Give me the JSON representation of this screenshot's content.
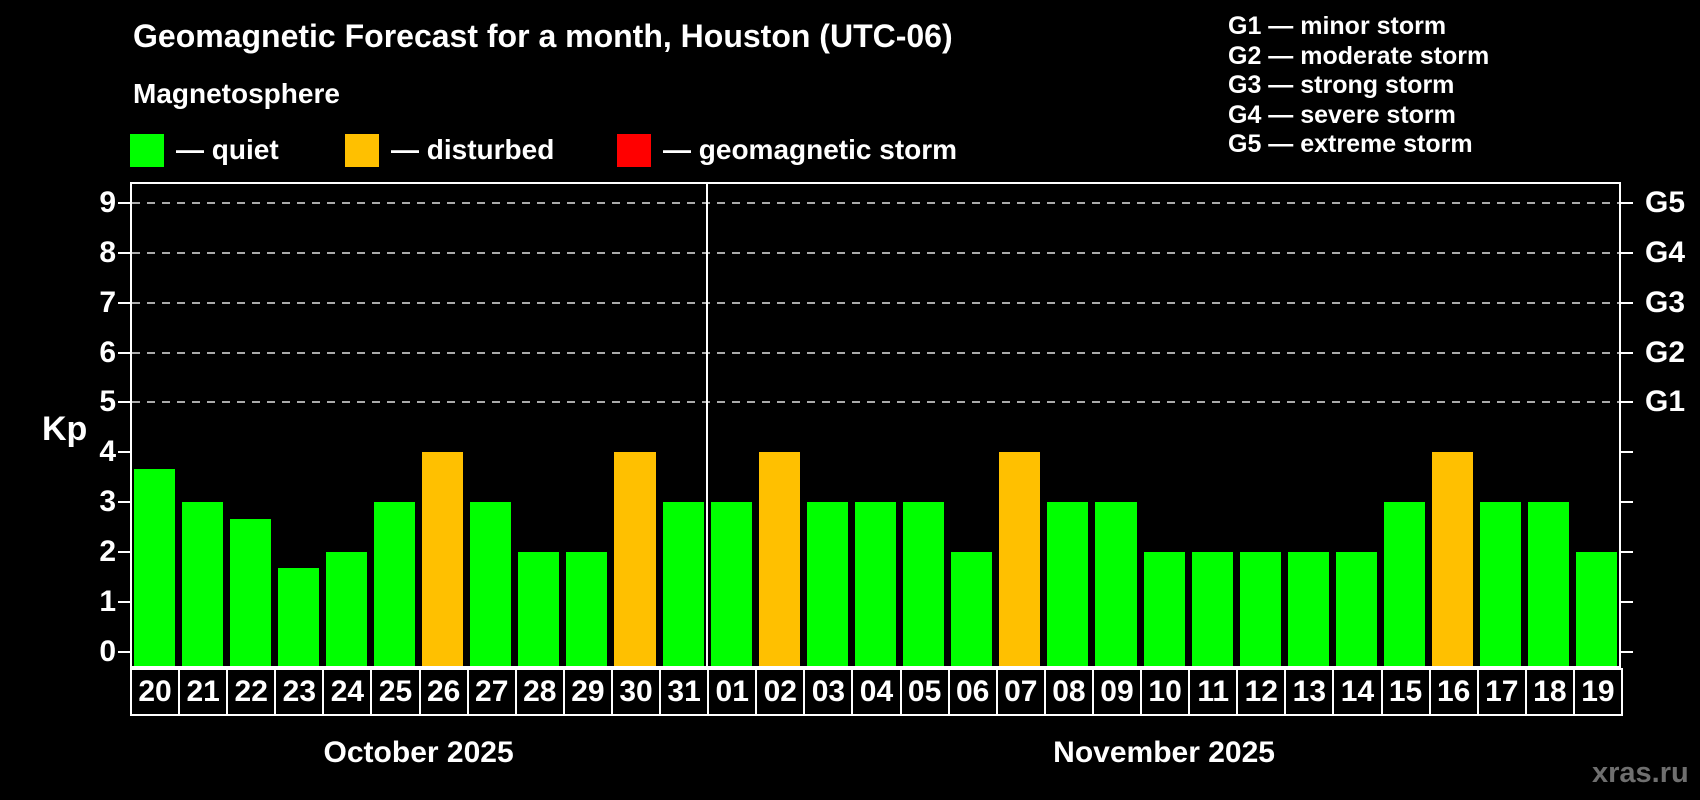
{
  "header": {
    "title": "Geomagnetic Forecast for a month, Houston (UTC-06)",
    "subtitle": "Magnetosphere"
  },
  "legend": {
    "items": [
      {
        "name": "quiet",
        "label": "— quiet",
        "color": "#00ff00"
      },
      {
        "name": "disturbed",
        "label": "— disturbed",
        "color": "#ffc000"
      },
      {
        "name": "storm",
        "label": "— geomagnetic storm",
        "color": "#ff0000"
      }
    ]
  },
  "g_scale_legend": [
    "G1 — minor storm",
    "G2 — moderate storm",
    "G3 — strong storm",
    "G4 — severe storm",
    "G5 — extreme storm"
  ],
  "axis": {
    "ylabel": "Kp",
    "yticks": [
      0,
      1,
      2,
      3,
      4,
      5,
      6,
      7,
      8,
      9
    ],
    "g_levels": [
      {
        "kp": 5,
        "label": "G1"
      },
      {
        "kp": 6,
        "label": "G2"
      },
      {
        "kp": 7,
        "label": "G3"
      },
      {
        "kp": 8,
        "label": "G4"
      },
      {
        "kp": 9,
        "label": "G5"
      }
    ]
  },
  "chart_data": {
    "type": "bar",
    "title": "Geomagnetic Forecast for a month, Houston (UTC-06)",
    "xlabel": "",
    "ylabel": "Kp",
    "ylim": [
      0,
      9
    ],
    "grid": "dashed horizontal at Kp 5-9 (G1-G5)",
    "categories": [
      "20",
      "21",
      "22",
      "23",
      "24",
      "25",
      "26",
      "27",
      "28",
      "29",
      "30",
      "31",
      "01",
      "02",
      "03",
      "04",
      "05",
      "06",
      "07",
      "08",
      "09",
      "10",
      "11",
      "12",
      "13",
      "14",
      "15",
      "16",
      "17",
      "18",
      "19"
    ],
    "values": [
      3.67,
      3,
      2.67,
      1.67,
      2,
      3,
      4,
      3,
      2,
      2,
      4,
      3,
      3,
      4,
      3,
      3,
      3,
      2,
      4,
      3,
      3,
      2,
      2,
      2,
      2,
      2,
      3,
      4,
      3,
      3,
      2
    ],
    "statuses": [
      "quiet",
      "quiet",
      "quiet",
      "quiet",
      "quiet",
      "quiet",
      "disturbed",
      "quiet",
      "quiet",
      "quiet",
      "disturbed",
      "quiet",
      "quiet",
      "disturbed",
      "quiet",
      "quiet",
      "quiet",
      "quiet",
      "disturbed",
      "quiet",
      "quiet",
      "quiet",
      "quiet",
      "quiet",
      "quiet",
      "quiet",
      "quiet",
      "disturbed",
      "quiet",
      "quiet",
      "quiet"
    ],
    "status_colors": {
      "quiet": "#00ff00",
      "disturbed": "#ffc000",
      "storm": "#ff0000"
    },
    "months": [
      {
        "label": "October 2025",
        "span": 12
      },
      {
        "label": "November 2025",
        "span": 19
      }
    ]
  },
  "watermark": "xras.ru"
}
